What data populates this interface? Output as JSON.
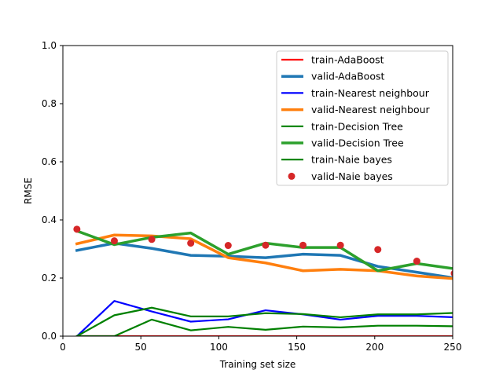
{
  "chart_data": {
    "type": "line",
    "title": "",
    "xlabel": "Training set size",
    "ylabel": "RMSE",
    "xlim": [
      0,
      250
    ],
    "ylim": [
      0,
      1.0
    ],
    "x_ticks": [
      0,
      50,
      100,
      150,
      200,
      250
    ],
    "y_ticks": [
      0.0,
      0.2,
      0.4,
      0.6,
      0.8,
      1.0
    ],
    "x_tick_labels": [
      "0",
      "50",
      "100",
      "150",
      "200",
      "250"
    ],
    "y_tick_labels": [
      "0.0",
      "0.2",
      "0.4",
      "0.6",
      "0.8",
      "1.0"
    ],
    "grid": false,
    "legend_position": "top-right",
    "x": [
      9,
      33,
      57,
      82,
      106,
      130,
      154,
      178,
      202,
      227,
      251
    ],
    "series": [
      {
        "name": "train-AdaBoost",
        "color": "#ff0000",
        "style": "thin-line",
        "values": [
          0,
          0,
          0,
          0,
          0,
          0,
          0,
          0,
          0,
          0,
          0
        ]
      },
      {
        "name": "valid-AdaBoost",
        "color": "#1f77b4",
        "style": "thick-line",
        "values": [
          0.295,
          0.32,
          0.302,
          0.278,
          0.275,
          0.27,
          0.282,
          0.278,
          0.24,
          0.22,
          0.2
        ]
      },
      {
        "name": "train-Nearest neighbour",
        "color": "#0000ff",
        "style": "thin-line",
        "values": [
          0,
          0.121,
          0.085,
          0.05,
          0.058,
          0.089,
          0.075,
          0.057,
          0.07,
          0.07,
          0.065
        ]
      },
      {
        "name": "valid-Nearest neighbour",
        "color": "#ff7f0e",
        "style": "thick-line",
        "values": [
          0.318,
          0.348,
          0.345,
          0.335,
          0.27,
          0.252,
          0.225,
          0.23,
          0.225,
          0.207,
          0.198
        ]
      },
      {
        "name": "train-Decision Tree",
        "color": "#008000",
        "style": "thin-line",
        "values": [
          0,
          0.072,
          0.098,
          0.068,
          0.068,
          0.079,
          0.076,
          0.065,
          0.075,
          0.075,
          0.08
        ]
      },
      {
        "name": "valid-Decision Tree",
        "color": "#2ca02c",
        "style": "thick-line",
        "values": [
          0.362,
          0.315,
          0.34,
          0.355,
          0.282,
          0.32,
          0.305,
          0.305,
          0.225,
          0.25,
          0.232
        ]
      },
      {
        "name": "train-Naie bayes",
        "color": "#008000",
        "style": "thin-line",
        "values": [
          0,
          0,
          0.057,
          0.02,
          0.032,
          0.022,
          0.033,
          0.03,
          0.036,
          0.036,
          0.034
        ]
      },
      {
        "name": "valid-Naie bayes",
        "color": "#d62728",
        "style": "dots",
        "values": [
          0.368,
          0.328,
          0.333,
          0.32,
          0.312,
          0.313,
          0.313,
          0.313,
          0.298,
          0.258,
          0.216
        ]
      }
    ]
  }
}
